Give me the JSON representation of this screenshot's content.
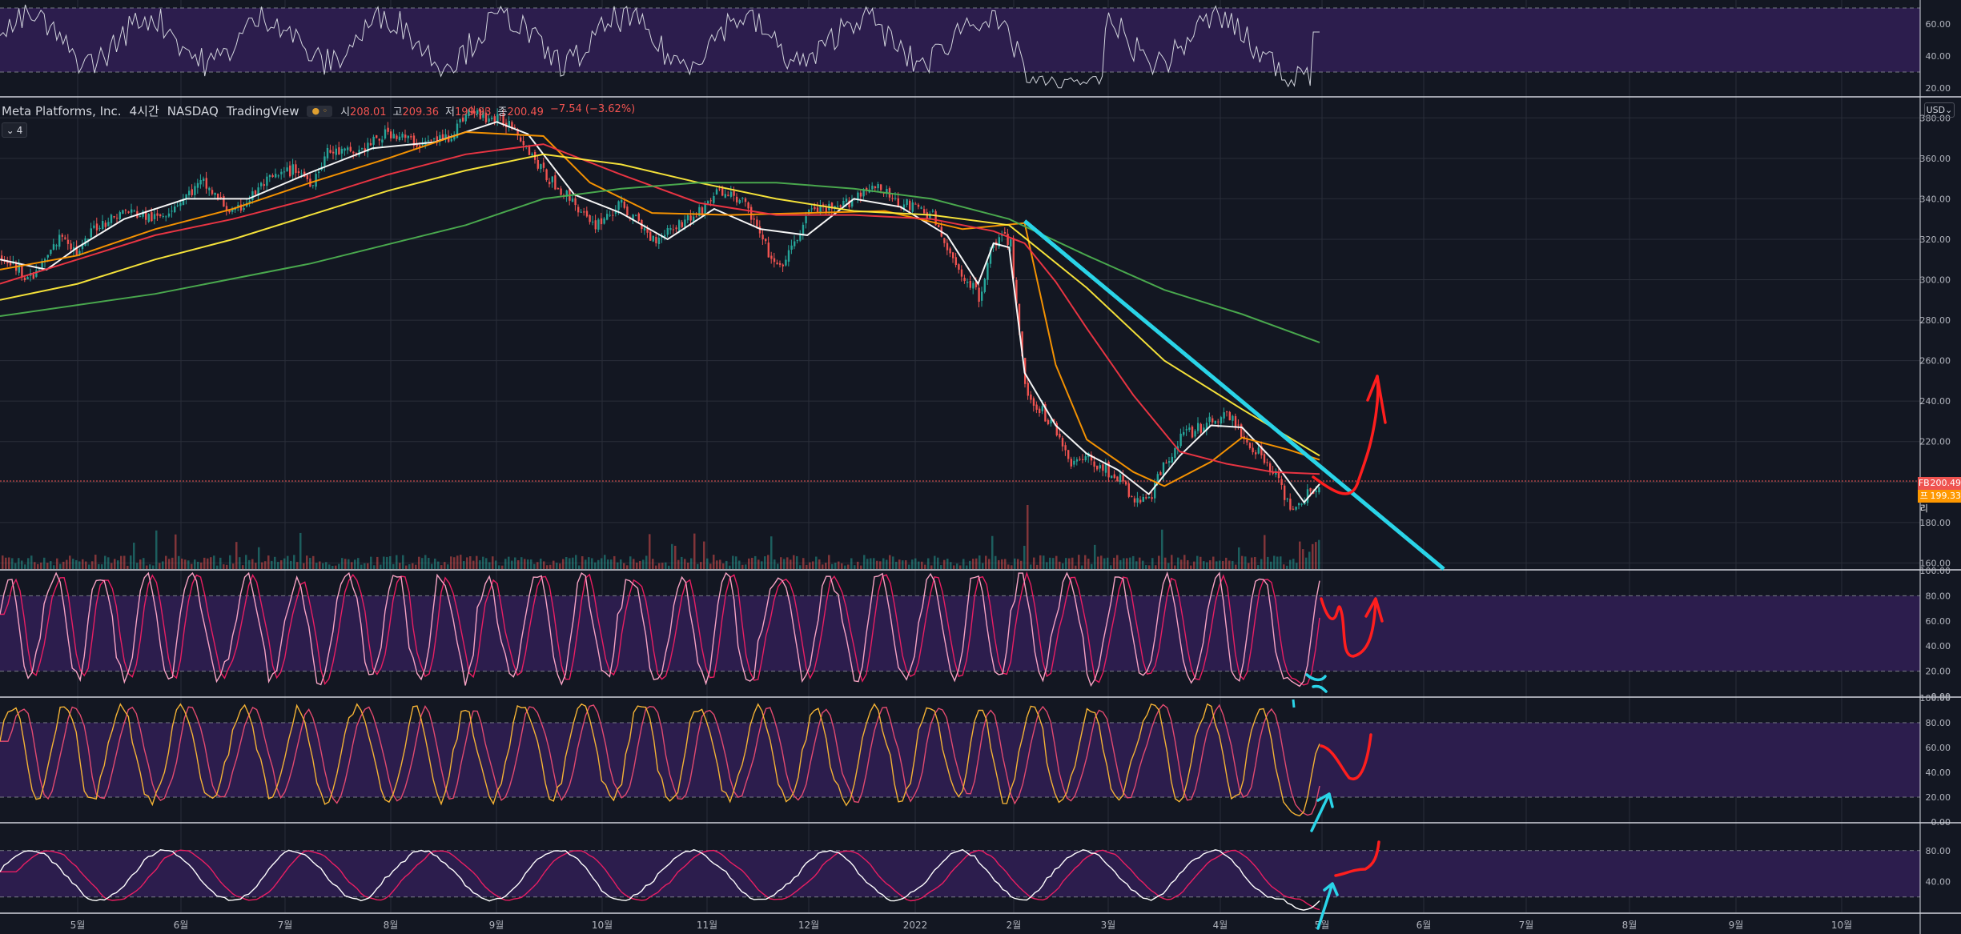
{
  "header": {
    "symbol": "Meta Platforms, Inc.",
    "interval": "4시간",
    "exchange": "NASDAQ",
    "source": "TradingView",
    "open_label": "시",
    "open": "208.01",
    "high_label": "고",
    "high": "209.36",
    "low_label": "저",
    "low": "199.93",
    "close_label": "종",
    "close": "200.49",
    "change": "−7.54 (−3.62%)",
    "indicator_count": "4",
    "currency": "USD"
  },
  "price_tags": [
    {
      "symbol": "FB",
      "value": "200.49",
      "color": "#ef5350"
    },
    {
      "symbol": "프리",
      "value": "199.33",
      "color": "#ff9800"
    }
  ],
  "colors": {
    "background": "#131722",
    "grid": "#2a2e39",
    "candle_up": "#26a69a",
    "candle_down": "#ef5350",
    "oscillator_band": "#2c1d4d",
    "ma_fast": "#ffffff",
    "ma_20": "#ff9800",
    "ma_50": "#f23645",
    "ma_100": "#ffeb3b",
    "ma_200": "#4caf50",
    "trendline": "#2ad4e8",
    "annotation_red": "#ff1e1e"
  },
  "chart_data": [
    {
      "type": "line",
      "panel": "top oscillator",
      "y_ticks": [
        "60.00",
        "40.00",
        "20.00"
      ],
      "ylim": [
        15,
        75
      ],
      "bands": [
        70,
        30
      ]
    },
    {
      "type": "candlestick",
      "panel": "price",
      "x_ticks": [
        "5월",
        "6월",
        "7월",
        "8월",
        "9월",
        "10월",
        "11월",
        "12월",
        "2022",
        "2월",
        "3월",
        "4월",
        "5월",
        "6월",
        "7월",
        "8월",
        "9월",
        "10월"
      ],
      "y_ticks": [
        "380.00",
        "360.00",
        "340.00",
        "320.00",
        "300.00",
        "280.00",
        "260.00",
        "240.00",
        "220.00",
        "200.00",
        "180.00",
        "160.00"
      ],
      "ylim": [
        157,
        390
      ],
      "last_price": 200.49,
      "pre_market": 199.33,
      "price_path": [
        [
          0,
          312
        ],
        [
          2,
          300
        ],
        [
          4,
          323
        ],
        [
          5,
          312
        ],
        [
          6,
          326
        ],
        [
          8,
          334
        ],
        [
          10,
          330
        ],
        [
          13,
          348
        ],
        [
          15,
          332
        ],
        [
          17,
          348
        ],
        [
          19,
          355
        ],
        [
          20,
          348
        ],
        [
          21,
          363
        ],
        [
          23,
          363
        ],
        [
          25,
          373
        ],
        [
          27,
          367
        ],
        [
          29,
          371
        ],
        [
          30,
          383
        ],
        [
          33,
          377
        ],
        [
          35,
          352
        ],
        [
          37,
          338
        ],
        [
          38,
          326
        ],
        [
          40,
          337
        ],
        [
          42,
          320
        ],
        [
          43,
          325
        ],
        [
          45,
          333
        ],
        [
          46,
          343
        ],
        [
          47,
          342
        ],
        [
          48,
          337
        ],
        [
          49,
          320
        ],
        [
          50,
          305
        ],
        [
          51,
          315
        ],
        [
          52,
          334
        ],
        [
          54,
          335
        ],
        [
          56,
          347
        ],
        [
          58,
          338
        ],
        [
          60,
          332
        ],
        [
          61,
          313
        ],
        [
          62,
          302
        ],
        [
          63,
          292
        ],
        [
          64,
          320
        ],
        [
          65,
          320
        ],
        [
          66,
          245
        ],
        [
          68,
          226
        ],
        [
          69,
          209
        ],
        [
          70,
          212
        ],
        [
          72,
          202
        ],
        [
          73,
          190
        ],
        [
          74,
          192
        ],
        [
          75,
          210
        ],
        [
          76,
          222
        ],
        [
          78,
          230
        ],
        [
          79,
          235
        ],
        [
          80,
          222
        ],
        [
          81,
          215
        ],
        [
          82,
          205
        ],
        [
          83,
          188
        ],
        [
          84,
          193
        ],
        [
          85,
          200.5
        ]
      ],
      "moving_averages": [
        {
          "name": "MA fast",
          "color": "#ffffff",
          "values": [
            [
              0,
              310
            ],
            [
              3,
              305
            ],
            [
              5,
              316
            ],
            [
              8,
              330
            ],
            [
              12,
              340
            ],
            [
              16,
              340
            ],
            [
              20,
              353
            ],
            [
              24,
              365
            ],
            [
              28,
              368
            ],
            [
              32,
              378
            ],
            [
              34,
              372
            ],
            [
              37,
              342
            ],
            [
              40,
              333
            ],
            [
              43,
              320
            ],
            [
              46,
              335
            ],
            [
              49,
              325
            ],
            [
              52,
              322
            ],
            [
              55,
              340
            ],
            [
              58,
              336
            ],
            [
              61,
              322
            ],
            [
              63,
              298
            ],
            [
              64,
              318
            ],
            [
              65,
              316
            ],
            [
              66,
              254
            ],
            [
              68,
              228
            ],
            [
              70,
              214
            ],
            [
              72,
              206
            ],
            [
              74,
              194
            ],
            [
              76,
              213
            ],
            [
              78,
              228
            ],
            [
              80,
              227
            ],
            [
              82,
              211
            ],
            [
              84,
              190
            ],
            [
              85,
              199
            ]
          ]
        },
        {
          "name": "MA 20",
          "color": "#ff9800",
          "values": [
            [
              0,
              305
            ],
            [
              5,
              312
            ],
            [
              10,
              325
            ],
            [
              15,
              335
            ],
            [
              20,
              348
            ],
            [
              25,
              360
            ],
            [
              30,
              373
            ],
            [
              35,
              371
            ],
            [
              38,
              348
            ],
            [
              42,
              333
            ],
            [
              47,
              332
            ],
            [
              52,
              333
            ],
            [
              57,
              334
            ],
            [
              62,
              325
            ],
            [
              66,
              328
            ],
            [
              67,
              293
            ],
            [
              68,
              258
            ],
            [
              70,
              221
            ],
            [
              73,
              205
            ],
            [
              75,
              198
            ],
            [
              78,
              210
            ],
            [
              80,
              222
            ],
            [
              83,
              216
            ],
            [
              85,
              211
            ]
          ]
        },
        {
          "name": "MA 50",
          "color": "#f23645",
          "values": [
            [
              0,
              298
            ],
            [
              5,
              310
            ],
            [
              10,
              322
            ],
            [
              15,
              330
            ],
            [
              20,
              340
            ],
            [
              25,
              352
            ],
            [
              30,
              362
            ],
            [
              35,
              367
            ],
            [
              40,
              352
            ],
            [
              45,
              338
            ],
            [
              50,
              332
            ],
            [
              55,
              332
            ],
            [
              60,
              330
            ],
            [
              64,
              324
            ],
            [
              66,
              318
            ],
            [
              68,
              299
            ],
            [
              70,
              276
            ],
            [
              73,
              243
            ],
            [
              76,
              215
            ],
            [
              79,
              209
            ],
            [
              82,
              205
            ],
            [
              85,
              204
            ]
          ]
        },
        {
          "name": "MA 100",
          "color": "#ffeb3b",
          "values": [
            [
              0,
              290
            ],
            [
              5,
              298
            ],
            [
              10,
              310
            ],
            [
              15,
              320
            ],
            [
              20,
              332
            ],
            [
              25,
              344
            ],
            [
              30,
              354
            ],
            [
              35,
              362
            ],
            [
              40,
              357
            ],
            [
              45,
              348
            ],
            [
              50,
              340
            ],
            [
              55,
              334
            ],
            [
              60,
              332
            ],
            [
              65,
              327
            ],
            [
              70,
              296
            ],
            [
              75,
              260
            ],
            [
              80,
              236
            ],
            [
              85,
              213
            ]
          ]
        },
        {
          "name": "MA 200",
          "color": "#4caf50",
          "values": [
            [
              0,
              282
            ],
            [
              10,
              293
            ],
            [
              20,
              308
            ],
            [
              30,
              327
            ],
            [
              35,
              340
            ],
            [
              40,
              345
            ],
            [
              45,
              348
            ],
            [
              50,
              348
            ],
            [
              55,
              345
            ],
            [
              60,
              340
            ],
            [
              65,
              330
            ],
            [
              70,
              312
            ],
            [
              75,
              295
            ],
            [
              80,
              283
            ],
            [
              85,
              269
            ]
          ]
        }
      ],
      "trendline": [
        [
          66,
          329
        ],
        [
          93,
          157
        ]
      ],
      "annotation": "red arrow drawn upward from ~200 to ~257"
    },
    {
      "type": "line",
      "panel": "stochastic 1",
      "y_ticks": [
        "100.00",
        "80.00",
        "60.00",
        "40.00",
        "20.00",
        "0.00"
      ],
      "ylim": [
        0,
        100
      ],
      "bands": [
        80,
        20
      ]
    },
    {
      "type": "line",
      "panel": "stochastic 2",
      "y_ticks": [
        "100.00",
        "80.00",
        "60.00",
        "40.00",
        "20.00",
        "0.00"
      ],
      "ylim": [
        0,
        100
      ],
      "bands": [
        80,
        20
      ]
    },
    {
      "type": "line",
      "panel": "stochastic 3",
      "y_ticks": [
        "80.00",
        "40.00"
      ],
      "ylim": [
        0,
        100
      ],
      "bands": [
        80,
        20
      ]
    }
  ]
}
